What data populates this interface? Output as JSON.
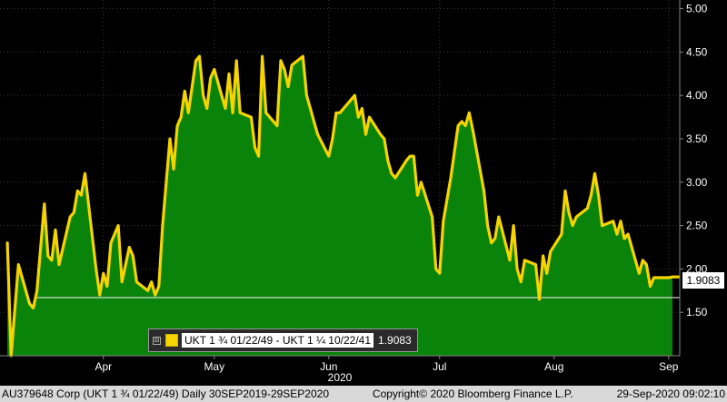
{
  "chart_data": {
    "type": "area",
    "frequency": "Daily",
    "series": [
      {
        "name": "UKT 1 ¾ 01/22/49 - UKT 1 ¼ 10/22/41",
        "color": "#f5d400",
        "fill": "#0a8a0a",
        "points": [
          [
            "2020-03-20",
            2.3
          ],
          [
            "2020-03-21",
            1.0
          ],
          [
            "2020-03-23",
            2.05
          ],
          [
            "2020-03-24",
            1.9
          ],
          [
            "2020-03-26",
            1.6
          ],
          [
            "2020-03-27",
            1.55
          ],
          [
            "2020-03-28",
            1.75
          ],
          [
            "2020-03-30",
            2.75
          ],
          [
            "2020-03-31",
            2.15
          ],
          [
            "2020-04-01",
            2.1
          ],
          [
            "2020-04-02",
            2.45
          ],
          [
            "2020-04-03",
            2.05
          ],
          [
            "2020-04-06",
            2.6
          ],
          [
            "2020-04-07",
            2.65
          ],
          [
            "2020-04-08",
            2.9
          ],
          [
            "2020-04-09",
            2.85
          ],
          [
            "2020-04-10",
            3.1
          ],
          [
            "2020-04-13",
            2.0
          ],
          [
            "2020-04-14",
            1.7
          ],
          [
            "2020-04-15",
            1.95
          ],
          [
            "2020-04-16",
            1.8
          ],
          [
            "2020-04-17",
            2.3
          ],
          [
            "2020-04-19",
            2.5
          ],
          [
            "2020-04-20",
            1.85
          ],
          [
            "2020-04-22",
            2.25
          ],
          [
            "2020-04-23",
            2.15
          ],
          [
            "2020-04-24",
            1.85
          ],
          [
            "2020-04-27",
            1.75
          ],
          [
            "2020-04-28",
            1.85
          ],
          [
            "2020-04-29",
            1.7
          ],
          [
            "2020-04-30",
            1.8
          ],
          [
            "2020-05-01",
            2.5
          ],
          [
            "2020-05-03",
            3.5
          ],
          [
            "2020-05-04",
            3.15
          ],
          [
            "2020-05-05",
            3.65
          ],
          [
            "2020-05-06",
            3.75
          ],
          [
            "2020-05-07",
            4.05
          ],
          [
            "2020-05-08",
            3.8
          ],
          [
            "2020-05-10",
            4.4
          ],
          [
            "2020-05-11",
            4.45
          ],
          [
            "2020-05-12",
            4.0
          ],
          [
            "2020-05-13",
            3.85
          ],
          [
            "2020-05-14",
            4.2
          ],
          [
            "2020-05-15",
            4.3
          ],
          [
            "2020-05-17",
            4.0
          ],
          [
            "2020-05-18",
            3.85
          ],
          [
            "2020-05-19",
            4.25
          ],
          [
            "2020-05-20",
            3.8
          ],
          [
            "2020-05-21",
            4.4
          ],
          [
            "2020-05-22",
            3.8
          ],
          [
            "2020-05-25",
            3.75
          ],
          [
            "2020-05-26",
            3.4
          ],
          [
            "2020-05-27",
            3.3
          ],
          [
            "2020-05-28",
            4.45
          ],
          [
            "2020-05-29",
            3.8
          ],
          [
            "2020-06-01",
            3.65
          ],
          [
            "2020-06-02",
            4.4
          ],
          [
            "2020-06-03",
            4.3
          ],
          [
            "2020-06-04",
            4.1
          ],
          [
            "2020-06-05",
            4.35
          ],
          [
            "2020-06-08",
            4.45
          ],
          [
            "2020-06-09",
            4.0
          ],
          [
            "2020-06-10",
            3.85
          ],
          [
            "2020-06-11",
            3.7
          ],
          [
            "2020-06-12",
            3.55
          ],
          [
            "2020-06-15",
            3.3
          ],
          [
            "2020-06-16",
            3.5
          ],
          [
            "2020-06-17",
            3.8
          ],
          [
            "2020-06-18",
            3.8
          ],
          [
            "2020-06-19",
            3.85
          ],
          [
            "2020-06-22",
            4.0
          ],
          [
            "2020-06-23",
            3.75
          ],
          [
            "2020-06-24",
            3.85
          ],
          [
            "2020-06-25",
            3.55
          ],
          [
            "2020-06-26",
            3.75
          ],
          [
            "2020-06-29",
            3.55
          ],
          [
            "2020-06-30",
            3.5
          ],
          [
            "2020-07-01",
            3.25
          ],
          [
            "2020-07-02",
            3.1
          ],
          [
            "2020-07-03",
            3.05
          ],
          [
            "2020-07-06",
            3.25
          ],
          [
            "2020-07-07",
            3.3
          ],
          [
            "2020-07-08",
            3.3
          ],
          [
            "2020-07-09",
            2.85
          ],
          [
            "2020-07-10",
            3.0
          ],
          [
            "2020-07-13",
            2.6
          ],
          [
            "2020-07-14",
            2.0
          ],
          [
            "2020-07-15",
            1.95
          ],
          [
            "2020-07-16",
            2.55
          ],
          [
            "2020-07-18",
            3.05
          ],
          [
            "2020-07-20",
            3.65
          ],
          [
            "2020-07-21",
            3.7
          ],
          [
            "2020-07-22",
            3.65
          ],
          [
            "2020-07-23",
            3.8
          ],
          [
            "2020-07-24",
            3.6
          ],
          [
            "2020-07-27",
            2.9
          ],
          [
            "2020-07-28",
            2.5
          ],
          [
            "2020-07-29",
            2.3
          ],
          [
            "2020-07-30",
            2.35
          ],
          [
            "2020-07-31",
            2.6
          ],
          [
            "2020-08-03",
            2.1
          ],
          [
            "2020-08-04",
            2.5
          ],
          [
            "2020-08-05",
            2.0
          ],
          [
            "2020-08-06",
            1.85
          ],
          [
            "2020-08-07",
            2.1
          ],
          [
            "2020-08-10",
            2.05
          ],
          [
            "2020-08-11",
            1.65
          ],
          [
            "2020-08-12",
            2.15
          ],
          [
            "2020-08-13",
            1.95
          ],
          [
            "2020-08-14",
            2.2
          ],
          [
            "2020-08-17",
            2.4
          ],
          [
            "2020-08-18",
            2.9
          ],
          [
            "2020-08-19",
            2.65
          ],
          [
            "2020-08-20",
            2.5
          ],
          [
            "2020-08-21",
            2.6
          ],
          [
            "2020-08-24",
            2.7
          ],
          [
            "2020-08-25",
            2.85
          ],
          [
            "2020-08-26",
            3.1
          ],
          [
            "2020-08-27",
            2.85
          ],
          [
            "2020-08-28",
            2.5
          ],
          [
            "2020-08-31",
            2.55
          ],
          [
            "2020-09-01",
            2.4
          ],
          [
            "2020-09-02",
            2.55
          ],
          [
            "2020-09-03",
            2.35
          ],
          [
            "2020-09-04",
            2.4
          ],
          [
            "2020-09-07",
            1.95
          ],
          [
            "2020-09-08",
            2.1
          ],
          [
            "2020-09-09",
            2.05
          ],
          [
            "2020-09-10",
            1.8
          ],
          [
            "2020-09-11",
            1.9
          ],
          [
            "2020-09-14",
            1.9
          ],
          [
            "2020-09-15",
            1.9
          ],
          [
            "2020-09-16",
            1.9083
          ]
        ]
      }
    ],
    "last_value": "1.9083",
    "reference_line": 1.67,
    "y_axis": {
      "position": "right",
      "range": [
        1.0,
        5.1
      ],
      "ticks": [
        "1.50",
        "2.00",
        "2.50",
        "3.00",
        "3.50",
        "4.00",
        "4.50",
        "5.00"
      ]
    },
    "x_axis": {
      "months": [
        {
          "label": "Apr",
          "date": "2020-04-15"
        },
        {
          "label": "May",
          "date": "2020-05-15"
        },
        {
          "label": "Jun",
          "date": "2020-06-15"
        },
        {
          "label": "Jul",
          "date": "2020-07-15"
        },
        {
          "label": "Aug",
          "date": "2020-08-15"
        },
        {
          "label": "Sep",
          "date": "2020-09-15"
        }
      ],
      "year": "2020",
      "visible_start": "2020-03-18",
      "visible_end": "2020-09-18"
    },
    "grid": true,
    "legend": {
      "expander": "⊟",
      "label": "UKT 1 ¾ 01/22/49 - UKT 1 ¼ 10/22/41",
      "value": "1.9083"
    }
  },
  "footer": {
    "left": "AU379648 Corp (UKT 1 ¾ 01/22/49)  Daily 30SEP2019-29SEP2020",
    "center": "Copyright© 2020 Bloomberg Finance L.P.",
    "right": "29-Sep-2020 09:02:10"
  }
}
